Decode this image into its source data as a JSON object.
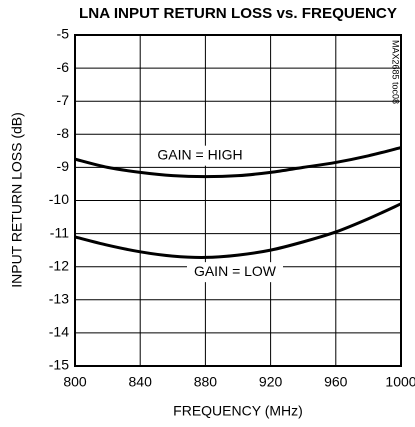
{
  "chart_data": {
    "type": "line",
    "title": "LNA INPUT RETURN LOSS vs. FREQUENCY",
    "x_label": "FREQUENCY (MHz)",
    "y_label": "INPUT RETURN LOSS (dB)",
    "side_note": "MAX2685 toc08",
    "x": [
      800,
      820,
      840,
      860,
      880,
      900,
      920,
      940,
      960,
      980,
      1000
    ],
    "series": [
      {
        "name": "GAIN = HIGH",
        "color": "#000000",
        "values": [
          -8.75,
          -9.0,
          -9.15,
          -9.25,
          -9.28,
          -9.25,
          -9.15,
          -9.0,
          -8.85,
          -8.65,
          -8.4
        ]
      },
      {
        "name": "GAIN = LOW",
        "color": "#000000",
        "values": [
          -11.1,
          -11.35,
          -11.55,
          -11.68,
          -11.72,
          -11.65,
          -11.5,
          -11.25,
          -10.95,
          -10.55,
          -10.1
        ]
      }
    ],
    "xlim": [
      800,
      1000
    ],
    "xticks": [
      800,
      840,
      880,
      920,
      960,
      1000
    ],
    "ylim": [
      -15,
      -5
    ],
    "yticks": [
      -5,
      -6,
      -7,
      -8,
      -9,
      -10,
      -11,
      -12,
      -13,
      -14,
      -15
    ],
    "grid": true
  }
}
